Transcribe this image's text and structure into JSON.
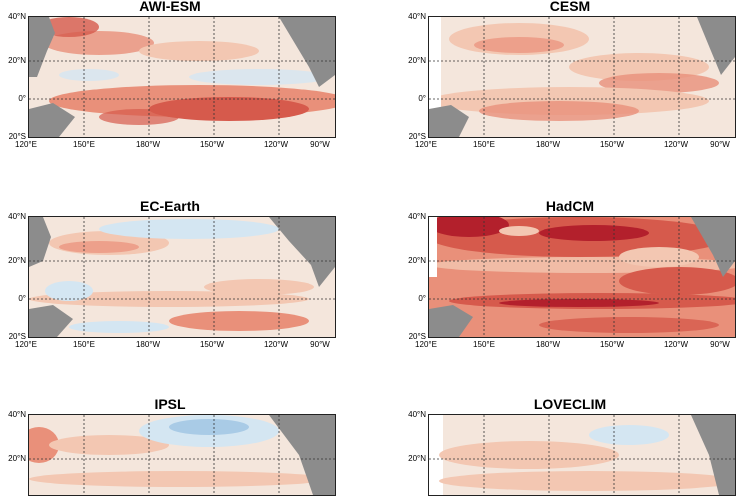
{
  "panels": [
    {
      "title": "AWI-ESM"
    },
    {
      "title": "CESM"
    },
    {
      "title": "EC-Earth"
    },
    {
      "title": "HadCM"
    },
    {
      "title": "IPSL"
    },
    {
      "title": "LOVECLIM"
    }
  ],
  "axes": {
    "lat_labels": [
      "40°N",
      "20°N",
      "0°",
      "20°S"
    ],
    "lon_labels": [
      "120°E",
      "150°E",
      "180°W",
      "150°W",
      "120°W",
      "90°W"
    ]
  },
  "colors": {
    "land": "#8c8c8c",
    "ocean_base": "#f4e6dc",
    "warm_light": "#f3c7b2",
    "warm_mid": "#e9907a",
    "warm_strong": "#d65a4c",
    "warm_dark": "#b3202c",
    "cool_light": "#d4e6f2",
    "cool_mid": "#a9cbe6"
  }
}
